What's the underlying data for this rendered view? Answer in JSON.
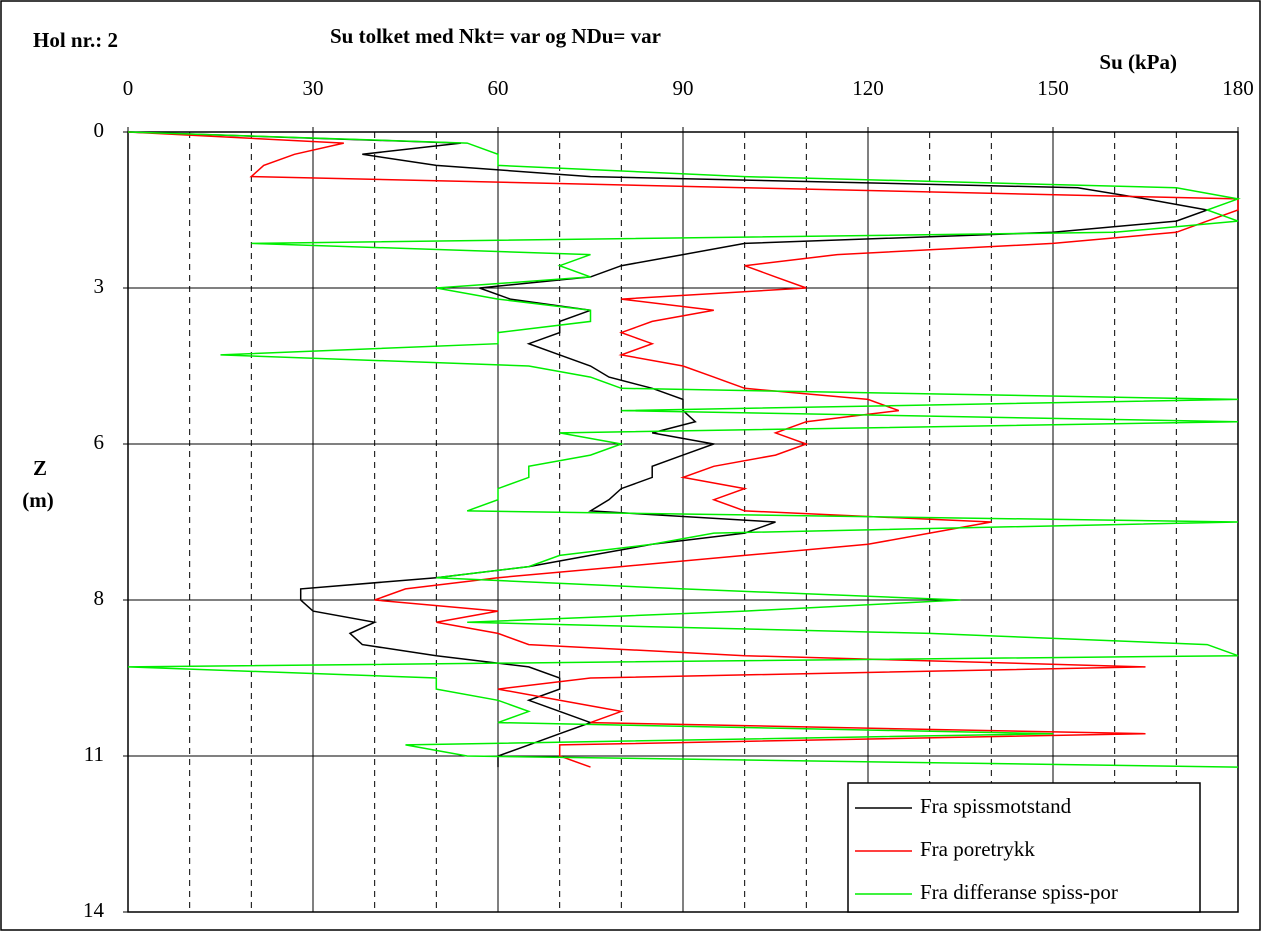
{
  "chart_data": {
    "type": "line",
    "label": "Hol nr.: 2",
    "title": "Su tolket med Nkt= var og NDu= var",
    "xlabel": "Su (kPa)",
    "ylabel": [
      "Z",
      "(m)"
    ],
    "depth": [
      0,
      0.2,
      0.4,
      0.6,
      0.8,
      1.0,
      1.2,
      1.4,
      1.6,
      1.8,
      2.0,
      2.2,
      2.4,
      2.6,
      2.8,
      3.0,
      3.2,
      3.4,
      3.6,
      3.8,
      4.0,
      4.2,
      4.4,
      4.6,
      4.8,
      5.0,
      5.2,
      5.4,
      5.6,
      5.8,
      6.0,
      6.2,
      6.4,
      6.6,
      6.8,
      7.0,
      7.2,
      7.4,
      7.6,
      7.8,
      8.0,
      8.2,
      8.4,
      8.6,
      8.8,
      9.0,
      9.2,
      9.4,
      9.6,
      9.8,
      10.0,
      10.2,
      10.4,
      10.6,
      10.8,
      11.0,
      11.2,
      11.4
    ],
    "series": [
      {
        "name": "Fra spissmotstand",
        "color": "#000000",
        "values": [
          0,
          54,
          38,
          50,
          75,
          154,
          165,
          175,
          170,
          150,
          100,
          90,
          80,
          75,
          57,
          62,
          75,
          70,
          70,
          65,
          70,
          75,
          78,
          85,
          90,
          90,
          92,
          85,
          95,
          90,
          85,
          85,
          80,
          78,
          75,
          105,
          100,
          85,
          75,
          65,
          50,
          28,
          28,
          30,
          40,
          36,
          38,
          50,
          65,
          70,
          70,
          65,
          70,
          75,
          70,
          65,
          60,
          60
        ]
      },
      {
        "name": "Fra poretrykk",
        "color": "#ff0000",
        "values": [
          0,
          35,
          27,
          22,
          20,
          100,
          180,
          180,
          175,
          170,
          150,
          115,
          100,
          105,
          110,
          80,
          95,
          85,
          80,
          85,
          80,
          90,
          95,
          100,
          120,
          125,
          110,
          105,
          110,
          105,
          95,
          90,
          100,
          95,
          100,
          140,
          130,
          120,
          100,
          80,
          60,
          45,
          40,
          60,
          50,
          60,
          65,
          100,
          165,
          75,
          60,
          70,
          80,
          75,
          165,
          70,
          70,
          75
        ]
      },
      {
        "name": "Fra differanse spiss-por",
        "color": "#00ee00",
        "values": [
          0,
          55,
          60,
          60,
          100,
          170,
          180,
          175,
          180,
          160,
          20,
          75,
          70,
          75,
          50,
          60,
          75,
          75,
          60,
          60,
          15,
          65,
          75,
          80,
          180,
          80,
          180,
          70,
          80,
          75,
          65,
          65,
          60,
          60,
          55,
          180,
          95,
          85,
          70,
          65,
          50,
          90,
          135,
          100,
          55,
          130,
          175,
          180,
          0,
          50,
          50,
          60,
          65,
          60,
          150,
          45,
          55,
          180
        ]
      }
    ],
    "xlim": [
      0,
      180
    ],
    "xticks": [
      0,
      30,
      60,
      90,
      120,
      150,
      180
    ],
    "xminorticks": [
      10,
      20,
      40,
      50,
      70,
      80,
      100,
      110,
      130,
      140,
      160,
      170
    ],
    "ylim": [
      0,
      14
    ],
    "yinverted": true,
    "yticks": [
      0,
      {
        "value": 2.8,
        "label": "3"
      },
      {
        "value": 5.6,
        "label": "6"
      },
      {
        "value": 8.4,
        "label": "8"
      },
      {
        "value": 11.2,
        "label": "11"
      },
      14
    ],
    "grid": true,
    "legend": "lower right"
  }
}
